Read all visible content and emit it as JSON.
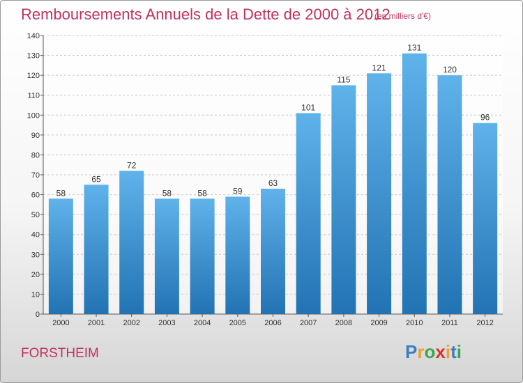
{
  "header": {
    "title": "Remboursements Annuels de la Dette de 2000 à 2012",
    "unit": "(en milliers d'€)"
  },
  "footer": {
    "commune": "FORSTHEIM",
    "logo_letters": [
      "P",
      "r",
      "o",
      "x",
      "i",
      "t",
      "i"
    ],
    "logo_colors": [
      "#3a7fc2",
      "#f0a030",
      "#3aa84a",
      "#d8332a",
      "#f0a030",
      "#3a7fc2",
      "#3aa84a"
    ]
  },
  "colors": {
    "title": "#c0335e",
    "bar_top": "#5fb2ea",
    "bar_bottom": "#2273b3"
  },
  "chart_data": {
    "type": "bar",
    "categories": [
      "2000",
      "2001",
      "2002",
      "2003",
      "2004",
      "2005",
      "2006",
      "2007",
      "2008",
      "2009",
      "2010",
      "2011",
      "2012"
    ],
    "values": [
      58,
      65,
      72,
      58,
      58,
      59,
      63,
      101,
      115,
      121,
      131,
      120,
      96
    ],
    "ylim": [
      0,
      140
    ],
    "yticks": [
      0,
      10,
      20,
      30,
      40,
      50,
      60,
      70,
      80,
      90,
      100,
      110,
      120,
      130,
      140
    ],
    "grid": true,
    "data_labels": true
  }
}
